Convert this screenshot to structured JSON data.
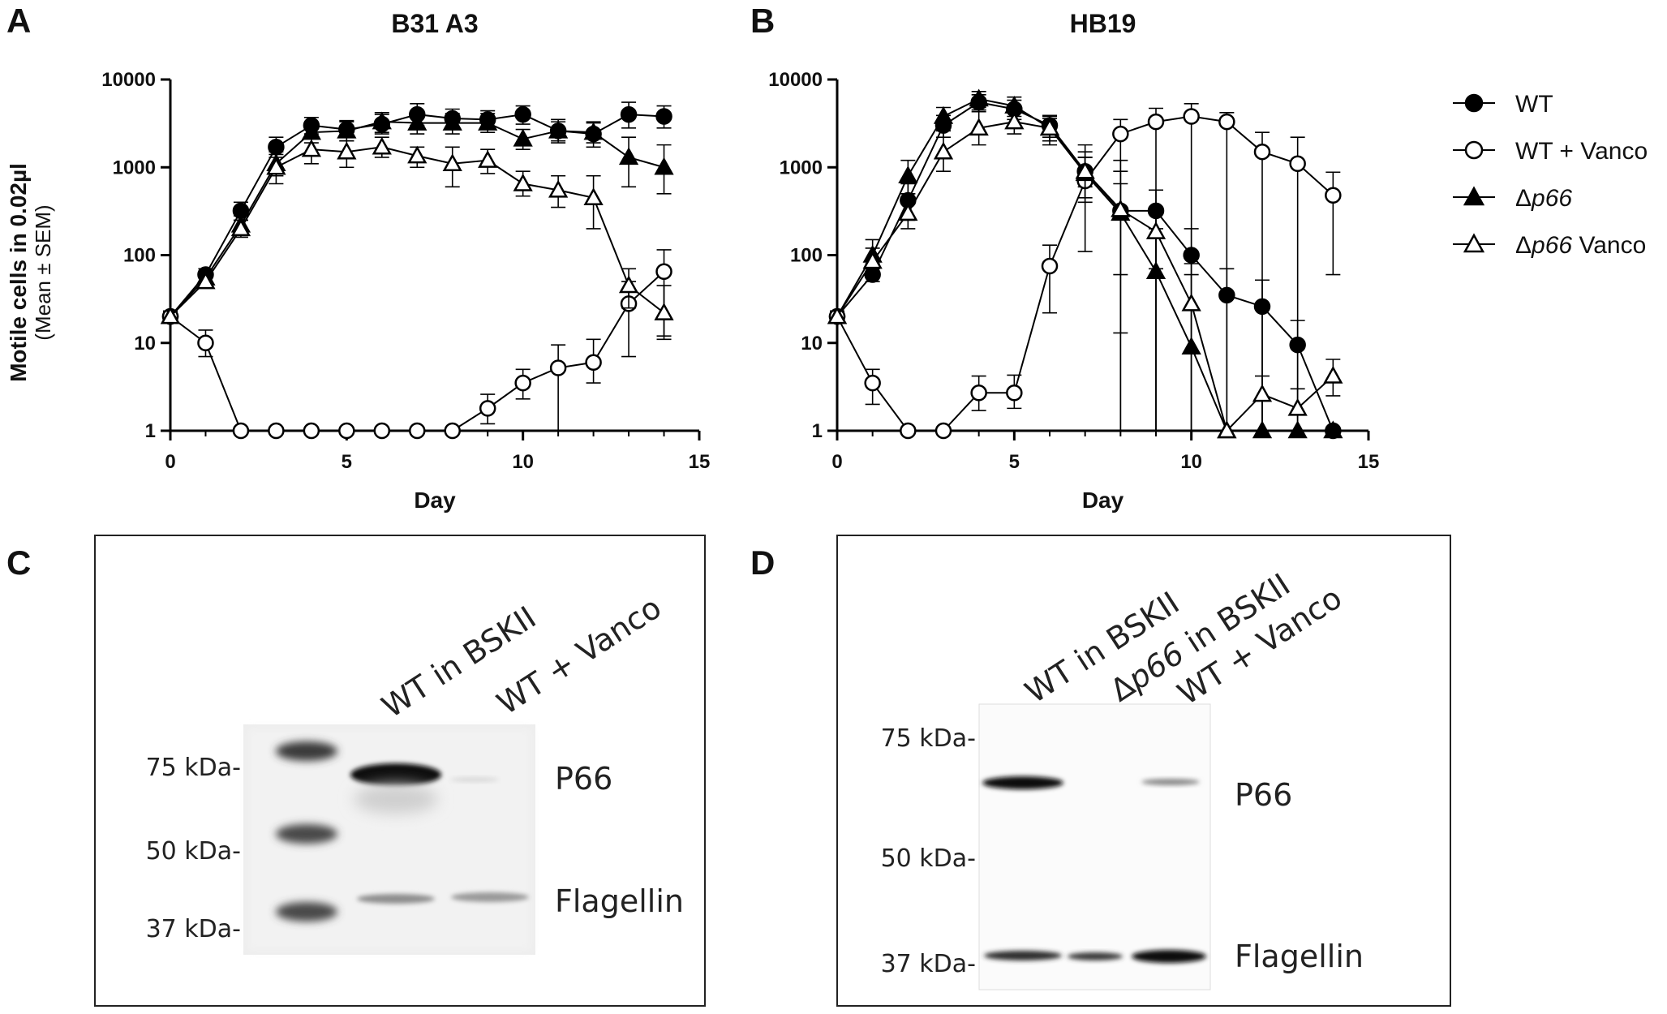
{
  "panel_letters": {
    "a": "A",
    "b": "B",
    "c": "C",
    "d": "D"
  },
  "ylabel_bold": "Motile cells in 0.02µl",
  "ylabel_sub": "(Mean ± SEM)",
  "legend": {
    "wt": {
      "pre": "WT",
      "ital": "",
      "post": ""
    },
    "wt_vanco": {
      "pre": "WT + Vanco",
      "ital": "",
      "post": ""
    },
    "dp66": {
      "pre": "Δ",
      "ital": "p66",
      "post": ""
    },
    "dp66_vanco": {
      "pre": "Δ",
      "ital": "p66",
      "post": " Vanco"
    }
  },
  "chart_data": [
    {
      "type": "line",
      "title": "B31 A3",
      "xlabel": "Day",
      "ylabel": "Motile cells in 0.02µl (Mean ± SEM)",
      "xlim": [
        0,
        15
      ],
      "xticks": [
        "0",
        "5",
        "10",
        "15"
      ],
      "ylim": [
        1,
        10000
      ],
      "yscale": "log",
      "yticks": [
        "1",
        "10",
        "100",
        "1000",
        "10000"
      ],
      "grid": false,
      "legend_position": "right",
      "x": [
        0,
        1,
        2,
        3,
        4,
        5,
        6,
        7,
        8,
        9,
        10,
        11,
        12,
        13,
        14
      ],
      "series": [
        {
          "name": "WT",
          "marker": "circle-filled",
          "values": [
            20,
            60,
            320,
            1700,
            3000,
            2700,
            3100,
            4000,
            3600,
            3500,
            4000,
            2600,
            2400,
            4000,
            3800
          ],
          "err_hi": [
            23,
            70,
            400,
            2200,
            3700,
            3300,
            4000,
            5300,
            4600,
            4400,
            5000,
            3500,
            3200,
            5500,
            5000
          ],
          "err_lo": [
            17,
            50,
            250,
            1300,
            2400,
            2200,
            2400,
            3000,
            2800,
            2700,
            3100,
            1900,
            1700,
            2800,
            2800
          ]
        },
        {
          "name": "WT + Vanco",
          "marker": "circle-open",
          "values": [
            20,
            10,
            1,
            1,
            1,
            1,
            1,
            1,
            1,
            1.8,
            3.5,
            5.2,
            6,
            28,
            65
          ],
          "err_hi": [
            23,
            14,
            1,
            1,
            1,
            1,
            1,
            1,
            1,
            2.6,
            5,
            9.5,
            11,
            50,
            115
          ],
          "err_lo": [
            17,
            7,
            1,
            1,
            1,
            1,
            1,
            1,
            1,
            1.2,
            2.3,
            1,
            3.5,
            7,
            12
          ]
        },
        {
          "name": "Δp66",
          "marker": "triangle-filled",
          "values": [
            20,
            55,
            220,
            1100,
            2500,
            2600,
            3300,
            3200,
            3200,
            3200,
            2100,
            2600,
            2500,
            1300,
            1000
          ],
          "err_hi": [
            23,
            65,
            280,
            1500,
            3200,
            3400,
            4200,
            4200,
            4100,
            4100,
            2700,
            3300,
            3300,
            2200,
            1800
          ],
          "err_lo": [
            17,
            45,
            170,
            800,
            1900,
            2000,
            2500,
            2400,
            2400,
            2500,
            1600,
            2000,
            1900,
            600,
            500
          ]
        },
        {
          "name": "Δp66 Vanco",
          "marker": "triangle-open",
          "values": [
            20,
            50,
            200,
            1000,
            1600,
            1500,
            1700,
            1350,
            1100,
            1200,
            650,
            550,
            450,
            45,
            22
          ],
          "err_hi": [
            23,
            58,
            250,
            1400,
            2200,
            2000,
            2200,
            1700,
            1700,
            1600,
            900,
            800,
            800,
            70,
            45
          ],
          "err_lo": [
            17,
            42,
            160,
            650,
            1100,
            1000,
            1300,
            1000,
            600,
            850,
            470,
            350,
            200,
            25,
            11
          ]
        }
      ]
    },
    {
      "type": "line",
      "title": "HB19",
      "xlabel": "Day",
      "ylabel": "",
      "xlim": [
        0,
        15
      ],
      "xticks": [
        "0",
        "5",
        "10",
        "15"
      ],
      "ylim": [
        1,
        10000
      ],
      "yscale": "log",
      "yticks": [
        "1",
        "10",
        "100",
        "1000",
        "10000"
      ],
      "grid": false,
      "x": [
        0,
        1,
        2,
        3,
        4,
        5,
        6,
        7,
        8,
        9,
        10,
        11,
        12,
        13,
        14
      ],
      "series": [
        {
          "name": "WT",
          "marker": "circle-filled",
          "values": [
            20,
            60,
            420,
            3000,
            5500,
            4600,
            3000,
            900,
            320,
            320,
            100,
            35,
            26,
            9.5,
            1
          ],
          "err_hi": [
            23,
            80,
            650,
            3900,
            6700,
            5800,
            3900,
            1300,
            650,
            550,
            200,
            70,
            52,
            18,
            1
          ],
          "err_lo": [
            17,
            50,
            250,
            2200,
            4300,
            3500,
            2200,
            600,
            1,
            1,
            1,
            1,
            1,
            1,
            1
          ]
        },
        {
          "name": "WT + Vanco",
          "marker": "circle-open",
          "values": [
            20,
            3.5,
            1,
            1,
            2.7,
            2.7,
            75,
            700,
            2400,
            3300,
            3800,
            3300,
            1500,
            1100,
            480
          ],
          "err_hi": [
            23,
            5,
            1,
            1,
            4.2,
            4.3,
            130,
            1300,
            3500,
            4700,
            5300,
            4200,
            2500,
            2200,
            880
          ],
          "err_lo": [
            17,
            2,
            1,
            1,
            1.7,
            1.8,
            22,
            110,
            13,
            1,
            1,
            1,
            1,
            1,
            60
          ]
        },
        {
          "name": "Δp66",
          "marker": "triangle-filled",
          "values": [
            20,
            100,
            800,
            3800,
            6000,
            5000,
            2800,
            850,
            300,
            65,
            9,
            1,
            1,
            1,
            1
          ],
          "err_hi": [
            23,
            150,
            1200,
            4800,
            7300,
            6300,
            3800,
            1800,
            1200,
            200,
            80,
            1,
            1,
            1,
            1
          ],
          "err_lo": [
            17,
            70,
            500,
            2900,
            4800,
            3800,
            1800,
            400,
            1,
            1,
            1,
            1,
            1,
            1,
            1
          ]
        },
        {
          "name": "Δp66 Vanco",
          "marker": "triangle-open",
          "values": [
            20,
            85,
            300,
            1500,
            2800,
            3300,
            2800,
            900,
            330,
            185,
            28,
            1,
            2.6,
            1.8,
            4.2
          ],
          "err_hi": [
            23,
            120,
            500,
            2600,
            4500,
            4500,
            3600,
            1500,
            900,
            330,
            60,
            1,
            4.2,
            3,
            6.5
          ],
          "err_lo": [
            17,
            60,
            200,
            900,
            1800,
            2400,
            2000,
            450,
            60,
            70,
            1,
            1,
            1,
            1,
            2.5
          ]
        }
      ]
    }
  ],
  "blot_c": {
    "lane_labels": [
      "WT in BSKII",
      "WT + Vanco"
    ],
    "markers": [
      "75 kDa-",
      "50 kDa-",
      "37 kDa-"
    ],
    "bands": [
      "P66",
      "Flagellin"
    ]
  },
  "blot_d": {
    "lane_labels": [
      {
        "pre": "WT in BSKII",
        "ital": "",
        "post": ""
      },
      {
        "pre": "Δ",
        "ital": "p66",
        "post": " in BSKII"
      },
      {
        "pre": "WT + Vanco",
        "ital": "",
        "post": ""
      }
    ],
    "markers": [
      "75 kDa-",
      "50 kDa-",
      "37 kDa-"
    ],
    "bands": [
      "P66",
      "Flagellin"
    ]
  }
}
